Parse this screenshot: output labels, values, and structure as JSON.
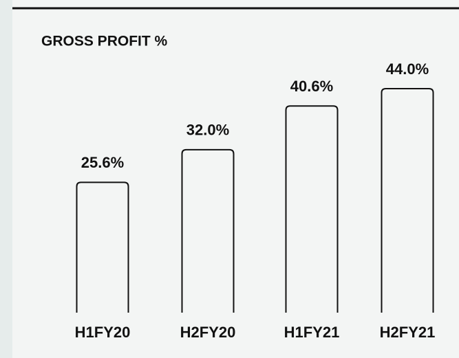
{
  "chart_data": {
    "type": "bar",
    "title": "GROSS PROFIT %",
    "categories": [
      "H1FY20",
      "H2FY20",
      "H1FY21",
      "H2FY21"
    ],
    "values": [
      25.6,
      32.0,
      40.6,
      44.0
    ],
    "value_labels": [
      "25.6%",
      "32.0%",
      "40.6%",
      "44.0%"
    ],
    "color": "#f3f5f4"
  }
}
